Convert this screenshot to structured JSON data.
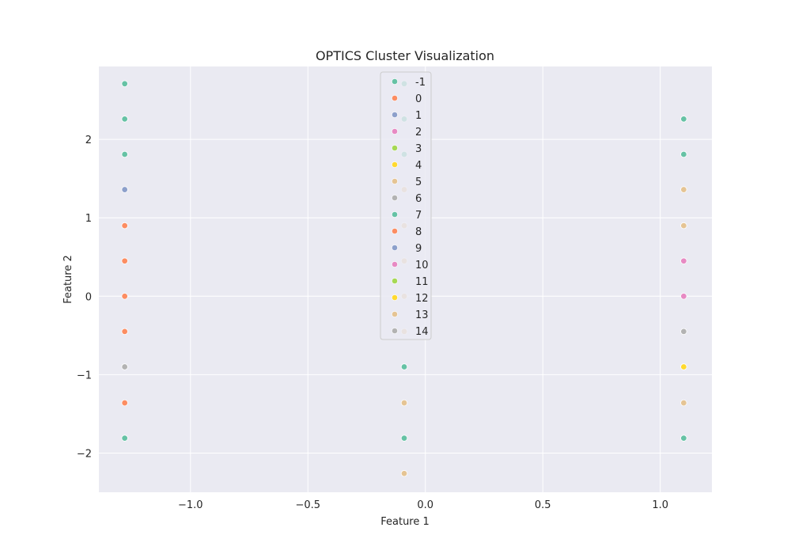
{
  "chart_data": {
    "type": "scatter",
    "title": "OPTICS Cluster Visualization",
    "xlabel": "Feature 1",
    "ylabel": "Feature 2",
    "xlim": [
      -1.39,
      1.22
    ],
    "ylim": [
      -2.5,
      2.93
    ],
    "xticks": [
      -1.0,
      -0.5,
      0.0,
      0.5,
      1.0
    ],
    "xtick_labels": [
      "−1.0",
      "−0.5",
      "0.0",
      "0.5",
      "1.0"
    ],
    "yticks": [
      -2,
      -1,
      0,
      1,
      2
    ],
    "ytick_labels": [
      "−2",
      "−1",
      "0",
      "1",
      "2"
    ],
    "grid": true,
    "legend_position": "top-center",
    "colors": [
      "#66c2a5",
      "#fc8d62",
      "#8da0cb",
      "#e78ac3",
      "#a6d854",
      "#ffd92f",
      "#e5c494",
      "#b3b3b3"
    ],
    "series": [
      {
        "name": "-1",
        "color": "#66c2a5",
        "points": [
          [
            -1.28,
            2.71
          ],
          [
            -1.28,
            2.26
          ],
          [
            -1.28,
            1.81
          ],
          [
            -0.09,
            2.71
          ],
          [
            -0.09,
            2.26
          ],
          [
            -0.09,
            1.81
          ],
          [
            1.1,
            2.26
          ],
          [
            1.1,
            1.81
          ]
        ]
      },
      {
        "name": "0",
        "color": "#fc8d62",
        "points": [
          [
            -1.28,
            0.9
          ],
          [
            -1.28,
            0.45
          ],
          [
            -1.28,
            0.0
          ],
          [
            -1.28,
            -0.45
          ]
        ]
      },
      {
        "name": "1",
        "color": "#8da0cb",
        "points": [
          [
            -1.28,
            1.36
          ]
        ]
      },
      {
        "name": "2",
        "color": "#e78ac3",
        "points": []
      },
      {
        "name": "3",
        "color": "#a6d854",
        "points": []
      },
      {
        "name": "4",
        "color": "#ffd92f",
        "points": []
      },
      {
        "name": "5",
        "color": "#e5c494",
        "points": [
          [
            -0.09,
            1.36
          ],
          [
            -0.09,
            0.9
          ],
          [
            -0.09,
            0.45
          ],
          [
            -0.09,
            0.0
          ],
          [
            -0.09,
            -0.45
          ]
        ]
      },
      {
        "name": "6",
        "color": "#b3b3b3",
        "points": [
          [
            -1.28,
            -0.9
          ]
        ]
      },
      {
        "name": "7",
        "color": "#66c2a5",
        "points": [
          [
            -1.28,
            -1.81
          ],
          [
            -0.09,
            -0.9
          ],
          [
            -0.09,
            -1.81
          ],
          [
            1.1,
            -1.81
          ]
        ]
      },
      {
        "name": "8",
        "color": "#fc8d62",
        "points": [
          [
            -1.28,
            -1.36
          ]
        ]
      },
      {
        "name": "9",
        "color": "#8da0cb",
        "points": []
      },
      {
        "name": "10",
        "color": "#e78ac3",
        "points": [
          [
            1.1,
            0.45
          ],
          [
            1.1,
            0.0
          ]
        ]
      },
      {
        "name": "11",
        "color": "#a6d854",
        "points": []
      },
      {
        "name": "12",
        "color": "#ffd92f",
        "points": [
          [
            1.1,
            -0.9
          ]
        ]
      },
      {
        "name": "13",
        "color": "#e5c494",
        "points": [
          [
            -0.09,
            -1.36
          ],
          [
            -0.09,
            -2.26
          ],
          [
            1.1,
            1.36
          ],
          [
            1.1,
            0.9
          ],
          [
            1.1,
            -1.36
          ]
        ]
      },
      {
        "name": "14",
        "color": "#b3b3b3",
        "points": [
          [
            1.1,
            -0.45
          ]
        ]
      }
    ]
  }
}
